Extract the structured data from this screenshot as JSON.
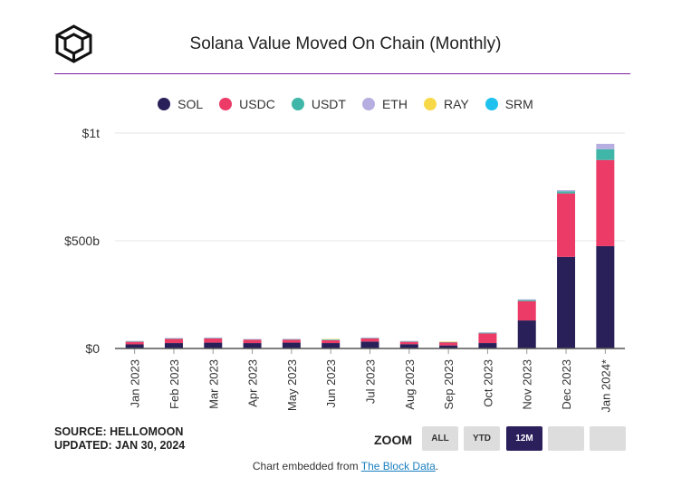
{
  "header": {
    "title": "Solana Value Moved On Chain (Monthly)"
  },
  "colors": {
    "SOL": "#2a2059",
    "USDC": "#ec3b67",
    "USDT": "#3fb6a8",
    "ETH": "#b6aee0",
    "RAY": "#f7d948",
    "SRM": "#1fc2ee",
    "rule": "#7b1fa2",
    "grid": "#e6e6e6"
  },
  "chart_data": {
    "type": "bar",
    "stacked": true,
    "title": "Solana Value Moved On Chain (Monthly)",
    "xlabel": "",
    "ylabel": "",
    "ylim": [
      0,
      1000
    ],
    "y_unit": "billions USD",
    "y_ticks": [
      {
        "value": 0,
        "label": "$0"
      },
      {
        "value": 500,
        "label": "$500b"
      },
      {
        "value": 1000,
        "label": "$1t"
      }
    ],
    "grid": true,
    "legend_position": "top-center",
    "categories": [
      "Jan 2023",
      "Feb 2023",
      "Mar 2023",
      "Apr 2023",
      "May 2023",
      "Jun 2023",
      "Jul 2023",
      "Aug 2023",
      "Sep 2023",
      "Oct 2023",
      "Nov 2023",
      "Dec 2023",
      "Jan 2024*"
    ],
    "series": [
      {
        "name": "SOL",
        "values": [
          19,
          25,
          27,
          25,
          27,
          25,
          32,
          20,
          14,
          25,
          130,
          425,
          475
        ]
      },
      {
        "name": "USDC",
        "values": [
          12,
          20,
          20,
          16,
          14,
          13,
          15,
          11,
          15,
          45,
          90,
          295,
          400
        ]
      },
      {
        "name": "USDT",
        "values": [
          2,
          2,
          2,
          2,
          2,
          3,
          2,
          2,
          1,
          3,
          5,
          10,
          50
        ]
      },
      {
        "name": "ETH",
        "values": [
          2,
          2,
          2,
          1,
          2,
          2,
          2,
          2,
          1,
          2,
          3,
          5,
          25
        ]
      },
      {
        "name": "RAY",
        "values": [
          0,
          0,
          0,
          0,
          0,
          1,
          0,
          0,
          1,
          0,
          0,
          0,
          0
        ]
      },
      {
        "name": "SRM",
        "values": [
          0,
          0,
          0,
          0,
          0,
          0,
          0,
          0,
          0,
          0,
          0,
          0,
          0
        ]
      }
    ]
  },
  "footer": {
    "source_line": "SOURCE: HELLOMOON",
    "updated_line": "UPDATED: JAN 30, 2024",
    "zoom_label": "ZOOM",
    "zoom_buttons": [
      "ALL",
      "YTD",
      "12M",
      "",
      ""
    ],
    "zoom_active": "12M",
    "embed_prefix": "Chart embedded from",
    "embed_link": "The Block Data",
    "embed_suffix": "."
  }
}
